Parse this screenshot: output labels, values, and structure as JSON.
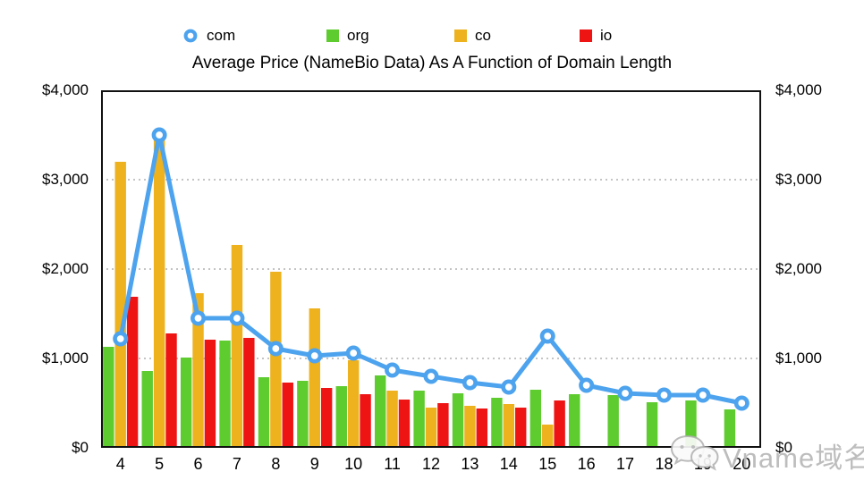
{
  "title": "Average Price (NameBio Data) As A Function of Domain Length",
  "legend": {
    "items": [
      {
        "label": "com",
        "marker": "donut-circle",
        "color": "#4da3ee"
      },
      {
        "label": "org",
        "marker": "square",
        "color": "#5ecb2f"
      },
      {
        "label": "co",
        "marker": "square",
        "color": "#edb21e"
      },
      {
        "label": "io",
        "marker": "square",
        "color": "#ee1414"
      }
    ]
  },
  "chart_data": {
    "type": "bar",
    "subtype": "grouped-bars-with-line-overlay",
    "title": "Average Price (NameBio Data) As A Function of Domain Length",
    "xlabel": "",
    "ylabel": "",
    "categories": [
      4,
      5,
      6,
      7,
      8,
      9,
      10,
      11,
      12,
      13,
      14,
      15,
      16,
      17,
      18,
      19,
      20
    ],
    "series": [
      {
        "name": "com",
        "type": "line",
        "color": "#4da3ee",
        "values": [
          1220,
          3500,
          1450,
          1450,
          1110,
          1030,
          1060,
          870,
          800,
          730,
          680,
          1250,
          700,
          610,
          590,
          590,
          500
        ]
      },
      {
        "name": "org",
        "type": "bar",
        "color": "#5ecb2f",
        "values": [
          1130,
          860,
          1010,
          1200,
          790,
          750,
          690,
          810,
          640,
          610,
          560,
          650,
          600,
          590,
          510,
          530,
          430
        ]
      },
      {
        "name": "co",
        "type": "bar",
        "color": "#edb21e",
        "values": [
          3200,
          3450,
          1730,
          2270,
          1970,
          1560,
          980,
          640,
          450,
          470,
          490,
          260,
          null,
          null,
          null,
          null,
          null
        ]
      },
      {
        "name": "io",
        "type": "bar",
        "color": "#ee1414",
        "values": [
          1690,
          1280,
          1210,
          1230,
          730,
          670,
          600,
          540,
          500,
          440,
          450,
          530,
          null,
          null,
          null,
          null,
          null
        ]
      }
    ],
    "ylim": [
      0,
      4000
    ],
    "ytick_values": [
      4000,
      3000,
      2000,
      1000,
      0
    ],
    "yticks_left": [
      "$4,000",
      "$3,000",
      "$2,000",
      "$1,000",
      "$0"
    ],
    "yticks_right": [
      "$4,000",
      "$3,000",
      "$2,000",
      "$1,000",
      "$0"
    ],
    "grid": "horizontal dotted at 1000/2000/3000",
    "legend_position": "top"
  },
  "colors": {
    "com_line": "#4da3ee",
    "org_bar": "#5ecb2f",
    "co_bar": "#edb21e",
    "io_bar": "#ee1414",
    "gridline": "#c4c4c4",
    "axis_border": "#111111",
    "watermark_gray": "#b2b2b2"
  },
  "watermark": {
    "icon": "wechat-chat-bubbles-icon",
    "text": "Vname域名"
  }
}
